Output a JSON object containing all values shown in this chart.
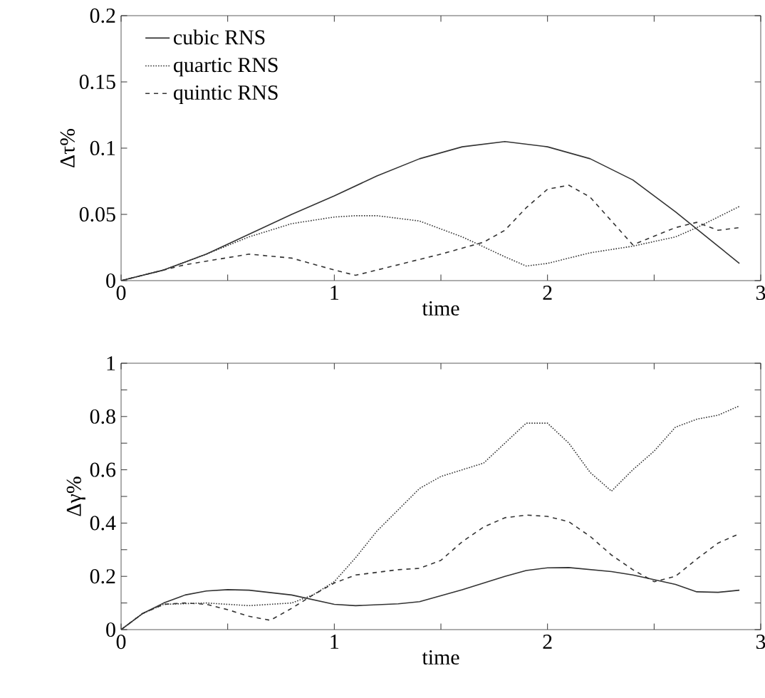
{
  "chart_data": [
    {
      "type": "line",
      "xlabel": "time",
      "ylabel": "Δτ%",
      "xlim": [
        0,
        3
      ],
      "ylim": [
        0,
        0.2
      ],
      "xticks": [
        0,
        {
          "value": 0.5,
          "label": null
        },
        1,
        {
          "value": 1.5,
          "label": null
        },
        2,
        {
          "value": 2.5,
          "label": null
        },
        3
      ],
      "yticks": [
        0,
        0.05,
        0.1,
        0.15,
        0.2
      ],
      "legend": "top left",
      "series": [
        {
          "name": "cubic RNS",
          "color": "#333333",
          "line_style": "solid",
          "x": [
            0,
            0.2,
            0.4,
            0.6,
            0.8,
            1.0,
            1.2,
            1.4,
            1.6,
            1.8,
            2.0,
            2.2,
            2.4,
            2.6,
            2.8,
            2.9
          ],
          "values": [
            0,
            0.008,
            0.02,
            0.035,
            0.05,
            0.064,
            0.079,
            0.092,
            0.101,
            0.105,
            0.101,
            0.092,
            0.076,
            0.052,
            0.026,
            0.013
          ]
        },
        {
          "name": "quartic RNS",
          "color": "#333333",
          "line_style": "dotted",
          "x": [
            0,
            0.2,
            0.4,
            0.6,
            0.8,
            1.0,
            1.1,
            1.2,
            1.4,
            1.6,
            1.8,
            1.9,
            2.0,
            2.2,
            2.4,
            2.6,
            2.7,
            2.9
          ],
          "values": [
            0,
            0.008,
            0.02,
            0.033,
            0.043,
            0.048,
            0.049,
            0.049,
            0.045,
            0.033,
            0.018,
            0.011,
            0.013,
            0.021,
            0.026,
            0.033,
            0.04,
            0.056
          ]
        },
        {
          "name": "quintic RNS",
          "color": "#333333",
          "line_style": "dashed",
          "x": [
            0,
            0.3,
            0.6,
            0.8,
            1.0,
            1.1,
            1.3,
            1.5,
            1.7,
            1.8,
            1.9,
            2.0,
            2.1,
            2.2,
            2.4,
            2.6,
            2.7,
            2.8,
            2.9
          ],
          "values": [
            0,
            0.012,
            0.02,
            0.017,
            0.008,
            0.004,
            0.012,
            0.02,
            0.029,
            0.038,
            0.055,
            0.069,
            0.072,
            0.063,
            0.027,
            0.04,
            0.044,
            0.038,
            0.04
          ]
        }
      ]
    },
    {
      "type": "line",
      "xlabel": "time",
      "ylabel": "Δγ%",
      "xlim": [
        0,
        3
      ],
      "ylim": [
        0,
        1
      ],
      "xticks": [
        0,
        {
          "value": 0.5,
          "label": null
        },
        1,
        {
          "value": 1.5,
          "label": null
        },
        2,
        {
          "value": 2.5,
          "label": null
        },
        3
      ],
      "yticks": [
        0,
        {
          "value": 0.1,
          "label": null
        },
        0.2,
        {
          "value": 0.3,
          "label": null
        },
        0.4,
        {
          "value": 0.5,
          "label": null
        },
        0.6,
        {
          "value": 0.7,
          "label": null
        },
        0.8,
        {
          "value": 0.9,
          "label": null
        },
        1
      ],
      "series": [
        {
          "color": "#333333",
          "line_style": "solid",
          "x": [
            0,
            0.1,
            0.2,
            0.3,
            0.4,
            0.5,
            0.6,
            0.8,
            1.0,
            1.1,
            1.3,
            1.4,
            1.6,
            1.8,
            1.9,
            2.0,
            2.1,
            2.3,
            2.4,
            2.6,
            2.7,
            2.8,
            2.9
          ],
          "values": [
            0,
            0.06,
            0.1,
            0.13,
            0.145,
            0.15,
            0.148,
            0.13,
            0.095,
            0.09,
            0.097,
            0.105,
            0.15,
            0.2,
            0.222,
            0.232,
            0.233,
            0.218,
            0.205,
            0.17,
            0.142,
            0.14,
            0.148
          ]
        },
        {
          "color": "#333333",
          "line_style": "dotted",
          "x": [
            0,
            0.1,
            0.2,
            0.4,
            0.6,
            0.8,
            0.9,
            1.0,
            1.1,
            1.2,
            1.3,
            1.4,
            1.5,
            1.6,
            1.7,
            1.8,
            1.9,
            2.0,
            2.1,
            2.2,
            2.3,
            2.4,
            2.5,
            2.6,
            2.7,
            2.8,
            2.9
          ],
          "values": [
            0,
            0.06,
            0.095,
            0.1,
            0.09,
            0.1,
            0.13,
            0.18,
            0.27,
            0.37,
            0.45,
            0.53,
            0.575,
            0.6,
            0.625,
            0.7,
            0.775,
            0.775,
            0.7,
            0.59,
            0.52,
            0.6,
            0.67,
            0.76,
            0.79,
            0.805,
            0.84
          ]
        },
        {
          "color": "#333333",
          "line_style": "dashed",
          "x": [
            0,
            0.1,
            0.2,
            0.3,
            0.4,
            0.5,
            0.6,
            0.7,
            0.8,
            0.9,
            1.0,
            1.1,
            1.2,
            1.3,
            1.4,
            1.5,
            1.6,
            1.7,
            1.8,
            1.9,
            2.0,
            2.1,
            2.2,
            2.3,
            2.4,
            2.5,
            2.6,
            2.7,
            2.8,
            2.9
          ],
          "values": [
            0,
            0.06,
            0.095,
            0.1,
            0.095,
            0.075,
            0.05,
            0.035,
            0.08,
            0.13,
            0.175,
            0.205,
            0.215,
            0.225,
            0.23,
            0.26,
            0.33,
            0.385,
            0.42,
            0.43,
            0.425,
            0.405,
            0.35,
            0.28,
            0.225,
            0.18,
            0.2,
            0.265,
            0.325,
            0.36
          ]
        }
      ]
    }
  ]
}
